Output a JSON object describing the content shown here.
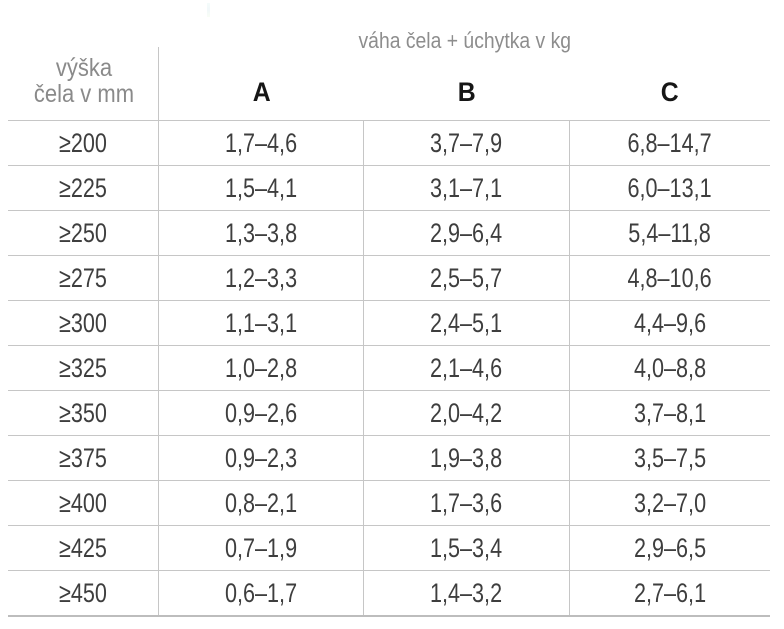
{
  "table": {
    "title": "váha čela + úchytka v kg",
    "corner_header": {
      "line1": "výška",
      "line2": "čela v mm"
    },
    "columns": [
      "A",
      "B",
      "C"
    ],
    "rows": [
      {
        "height_mm": "≥200",
        "values": [
          "1,7–4,6",
          "3,7–7,9",
          "6,8–14,7"
        ]
      },
      {
        "height_mm": "≥225",
        "values": [
          "1,5–4,1",
          "3,1–7,1",
          "6,0–13,1"
        ]
      },
      {
        "height_mm": "≥250",
        "values": [
          "1,3–3,8",
          "2,9–6,4",
          "5,4–11,8"
        ]
      },
      {
        "height_mm": "≥275",
        "values": [
          "1,2–3,3",
          "2,5–5,7",
          "4,8–10,6"
        ]
      },
      {
        "height_mm": "≥300",
        "values": [
          "1,1–3,1",
          "2,4–5,1",
          "4,4–9,6"
        ]
      },
      {
        "height_mm": "≥325",
        "values": [
          "1,0–2,8",
          "2,1–4,6",
          "4,0–8,8"
        ]
      },
      {
        "height_mm": "≥350",
        "values": [
          "0,9–2,6",
          "2,0–4,2",
          "3,7–8,1"
        ]
      },
      {
        "height_mm": "≥375",
        "values": [
          "0,9–2,3",
          "1,9–3,8",
          "3,5–7,5"
        ]
      },
      {
        "height_mm": "≥400",
        "values": [
          "0,8–2,1",
          "1,7–3,6",
          "3,2–7,0"
        ]
      },
      {
        "height_mm": "≥425",
        "values": [
          "0,7–1,9",
          "1,5–3,4",
          "2,9–6,5"
        ]
      },
      {
        "height_mm": "≥450",
        "values": [
          "0,6–1,7",
          "1,4–3,2",
          "2,7–6,1"
        ]
      }
    ]
  },
  "colors": {
    "title_text": "#8d8d8d",
    "corner_header_text": "#8a8a8a",
    "column_letter_text": "#161616",
    "cell_text": "#3e3e3e",
    "grid_line": "#c6c6c6",
    "bottom_line": "#bdbdbd"
  }
}
